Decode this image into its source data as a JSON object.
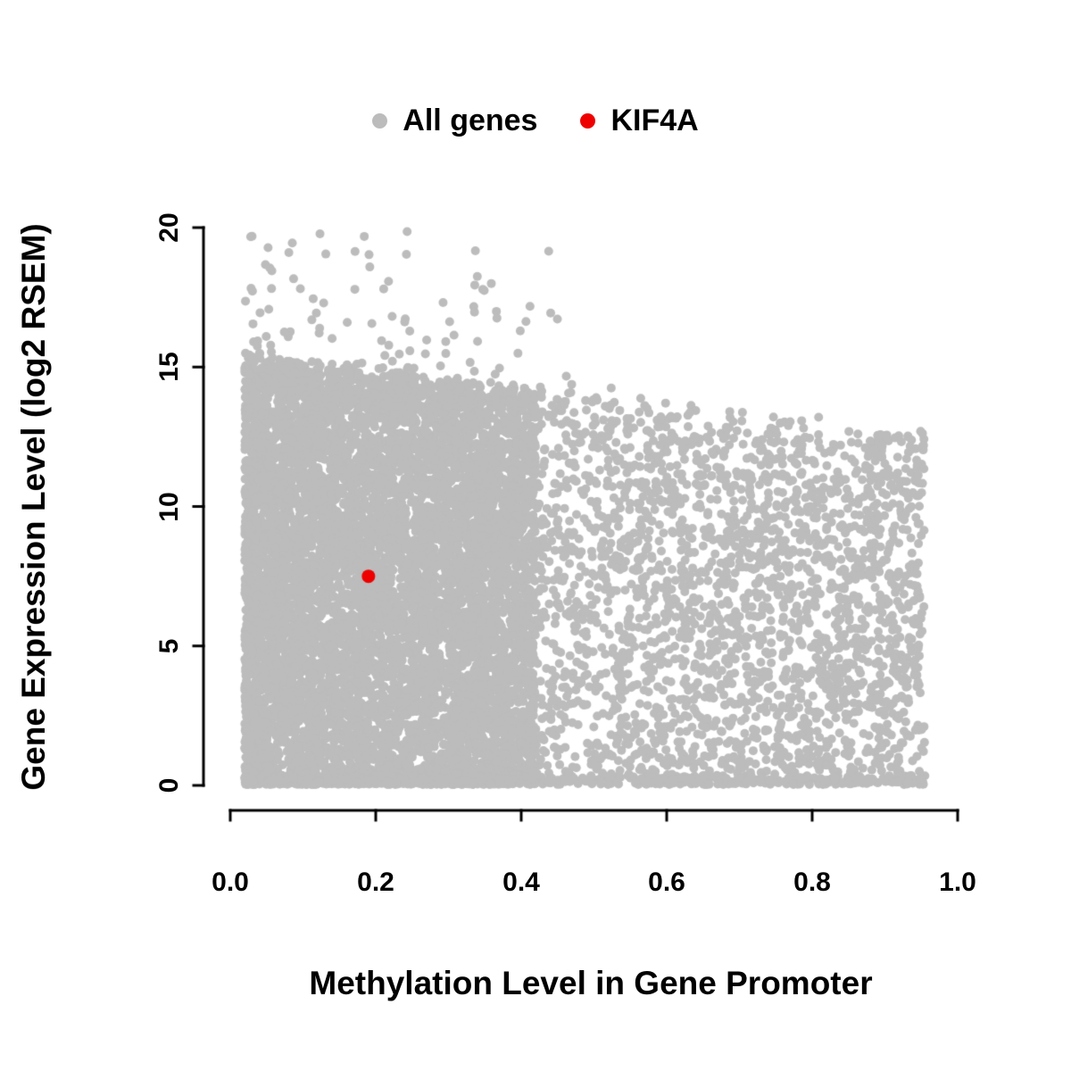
{
  "chart_data": {
    "type": "scatter",
    "title": "",
    "xlabel": "Methylation Level in Gene Promoter",
    "ylabel": "Gene Expression Level (log2 RSEM)",
    "xlim": [
      0.0,
      1.0
    ],
    "ylim": [
      0,
      20
    ],
    "grid": false,
    "legend_position": "top-center",
    "x_tick_values": [
      0.0,
      0.2,
      0.4,
      0.6,
      0.8,
      1.0
    ],
    "x_tick_labels": [
      "0.0",
      "0.2",
      "0.4",
      "0.6",
      "0.8",
      "1.0"
    ],
    "y_tick_values": [
      0,
      5,
      10,
      15,
      20
    ],
    "y_tick_labels": [
      "0",
      "5",
      "10",
      "15",
      "20"
    ],
    "legend": [
      {
        "label": "All genes",
        "color": "#bcbcbc",
        "marker": "circle"
      },
      {
        "label": "KIF4A",
        "color": "#ee0000",
        "marker": "circle"
      }
    ],
    "series": [
      {
        "name": "All genes",
        "color": "#bcbcbc",
        "marker_radius_px": 5,
        "type": "dense-cloud",
        "n_points": 12000,
        "seed": 42,
        "x_min": 0.02,
        "x_max": 0.955,
        "y_envelope_at_x0": 15.4,
        "y_envelope_slope": -3.0,
        "outlier_fraction": 0.012,
        "outlier_x_max": 0.55,
        "y_max": 19.9,
        "bottom_band_fraction": 0.08,
        "description": "Dense cloud of ~12000 genes: methylation mostly below 0.45 with expression 0-15.5 (log2 RSEM); sparser tail out to methylation ~0.95 where the expression upper envelope falls to ~12.5; heavy band of points at expression ~0 across all methylation levels; a few high-expression outliers up to ~19.8 at methylation < 0.55."
      },
      {
        "name": "KIF4A",
        "color": "#ee0000",
        "marker_radius_px": 7.5,
        "points": [
          [
            0.19,
            7.5
          ]
        ]
      }
    ]
  }
}
